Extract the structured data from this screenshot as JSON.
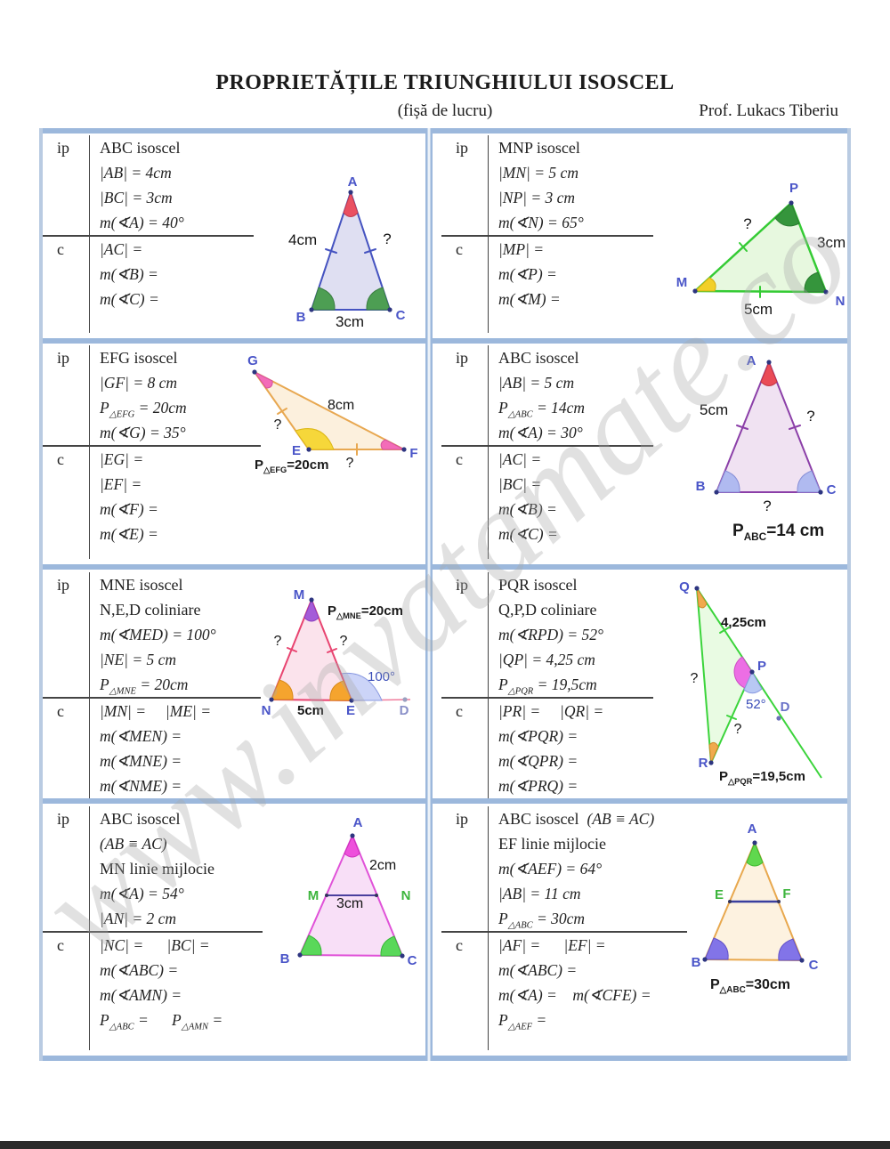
{
  "page": {
    "title": "PROPRIETĂȚILE TRIUNGHIULUI ISOSCEL",
    "subtitle": "(fișă de lucru)",
    "author": "Prof. Lukacs Tiberiu",
    "watermark": "www.invatamate.co"
  },
  "gutter": {
    "ip": "ip",
    "c": "c"
  },
  "problems": [
    {
      "ip": [
        [
          {
            "t": "ABC isoscel",
            "up": true
          }
        ],
        [
          "|AB| = 4cm"
        ],
        [
          "|BC| = 3cm"
        ],
        [
          "m(∢A) = 40°"
        ]
      ],
      "c": [
        [
          "|AC| ="
        ],
        [
          "m(∢B) ="
        ],
        [
          "m(∢C) ="
        ]
      ]
    },
    {
      "ip": [
        [
          {
            "t": "MNP isoscel",
            "up": true
          }
        ],
        [
          "|MN| = 5 cm"
        ],
        [
          "|NP| = 3 cm"
        ],
        [
          "m(∢N) = 65°"
        ]
      ],
      "c": [
        [
          "|MP| ="
        ],
        [
          "m(∢P) ="
        ],
        [
          "m(∢M) ="
        ]
      ]
    },
    {
      "ip": [
        [
          {
            "t": "EFG isoscel",
            "up": true
          }
        ],
        [
          "|GF| = 8 cm"
        ],
        [
          "P",
          {
            "sub": "△EFG"
          },
          " = 20cm"
        ],
        [
          "m(∢G) = 35°"
        ]
      ],
      "c": [
        [
          "|EG| ="
        ],
        [
          "|EF| ="
        ],
        [
          "m(∢F) ="
        ],
        [
          "m(∢E) ="
        ]
      ]
    },
    {
      "ip": [
        [
          {
            "t": "ABC isoscel",
            "up": true
          }
        ],
        [
          "|AB| = 5 cm"
        ],
        [
          "P",
          {
            "sub": "△ABC"
          },
          " = 14cm"
        ],
        [
          "m(∢A) = 30°"
        ]
      ],
      "c": [
        [
          "|AC| ="
        ],
        [
          "|BC| ="
        ],
        [
          "m(∢B) ="
        ],
        [
          "m(∢C) ="
        ]
      ]
    },
    {
      "ip": [
        [
          {
            "t": "MNE isoscel",
            "up": true
          }
        ],
        [
          {
            "t": "N,E,D coliniare",
            "up": true
          }
        ],
        [
          "m(∢MED) = 100°"
        ],
        [
          "|NE| = 5 cm"
        ],
        [
          "P",
          {
            "sub": "△MNE"
          },
          " = 20cm"
        ]
      ],
      "c": [
        [
          "|MN| =     |ME| ="
        ],
        [
          "m(∢MEN) ="
        ],
        [
          "m(∢MNE) ="
        ],
        [
          "m(∢NME) ="
        ]
      ]
    },
    {
      "ip": [
        [
          {
            "t": "PQR isoscel",
            "up": true
          }
        ],
        [
          {
            "t": "Q,P,D coliniare",
            "up": true
          }
        ],
        [
          "m(∢RPD) = 52°"
        ],
        [
          "|QP| = 4,25 cm"
        ],
        [
          "P",
          {
            "sub": "△PQR"
          },
          " = 19,5cm"
        ]
      ],
      "c": [
        [
          "|PR| =     |QR| ="
        ],
        [
          "m(∢PQR) ="
        ],
        [
          "m(∢QPR) ="
        ],
        [
          "m(∢PRQ) ="
        ]
      ]
    },
    {
      "ip": [
        [
          {
            "t": "ABC isoscel",
            "up": true
          }
        ],
        [
          "(AB ≡ AC)"
        ],
        [
          {
            "t": "MN linie mijlocie",
            "up": true
          }
        ],
        [
          "m(∢A) = 54°"
        ],
        [
          "|AN| = 2 cm"
        ]
      ],
      "c": [
        [
          "|NC| =      |BC| ="
        ],
        [
          "m(∢ABC) ="
        ],
        [
          "m(∢AMN) ="
        ],
        [
          "P",
          {
            "sub": "△ABC"
          },
          " =      ",
          "P",
          {
            "sub": "△AMN"
          },
          " ="
        ]
      ]
    },
    {
      "ip": [
        [
          {
            "t": "ABC isoscel  ",
            "up": true
          },
          "(AB ≡ AC)"
        ],
        [
          {
            "t": "EF linie mijlocie",
            "up": true
          }
        ],
        [
          "m(∢AEF) = 64°"
        ],
        [
          "|AB| = 11 cm"
        ],
        [
          "P",
          {
            "sub": "△ABC"
          },
          " = 30cm"
        ]
      ],
      "c": [
        [
          "|AF| =      |EF| ="
        ],
        [
          "m(∢ABC) ="
        ],
        [
          "m(∢A) =    m(∢CFE) ="
        ],
        [
          "P",
          {
            "sub": "△AEF"
          },
          " ="
        ]
      ]
    }
  ],
  "diagrams": {
    "d1": {
      "v": {
        "A": "A",
        "B": "B",
        "C": "C"
      },
      "s": {
        "ab": "4cm",
        "ac": "?",
        "bc": "3cm"
      }
    },
    "d2": {
      "v": {
        "M": "M",
        "N": "N",
        "P": "P"
      },
      "s": {
        "mp": "?",
        "np": "3cm",
        "mn": "5cm"
      }
    },
    "d3": {
      "v": {
        "G": "G",
        "E": "E",
        "F": "F"
      },
      "s": {
        "gf": "8cm",
        "ge": "?",
        "ef": "?"
      },
      "caption": {
        "p": "P",
        "sub": "△EFG",
        "rest": "=20cm"
      }
    },
    "d4": {
      "v": {
        "A": "A",
        "B": "B",
        "C": "C"
      },
      "s": {
        "ab": "5cm",
        "ac": "?",
        "bc": "?"
      },
      "caption": {
        "p": "P",
        "sub": "ABC",
        "rest": "=14 cm"
      }
    },
    "d5": {
      "v": {
        "M": "M",
        "N": "N",
        "E": "E",
        "D": "D"
      },
      "s": {
        "mn": "?",
        "me": "?",
        "ne": "5cm"
      },
      "angle": "100°",
      "caption": {
        "p": "P",
        "sub": "△MNE",
        "rest": "=20cm"
      }
    },
    "d6": {
      "v": {
        "Q": "Q",
        "P": "P",
        "D": "D",
        "R": "R"
      },
      "s": {
        "qp": "4,25cm",
        "qr": "?",
        "pr": "?"
      },
      "angle": "52°",
      "caption": {
        "p": "P",
        "sub": "△PQR",
        "rest": "=19,5cm"
      }
    },
    "d7": {
      "v": {
        "A": "A",
        "B": "B",
        "C": "C",
        "M": "M",
        "N": "N"
      },
      "s": {
        "an": "2cm",
        "mn": "3cm"
      }
    },
    "d8": {
      "v": {
        "A": "A",
        "B": "B",
        "C": "C",
        "E": "E",
        "F": "F"
      },
      "caption": {
        "p": "P",
        "sub": "△ABC",
        "rest": "=30cm"
      }
    }
  }
}
